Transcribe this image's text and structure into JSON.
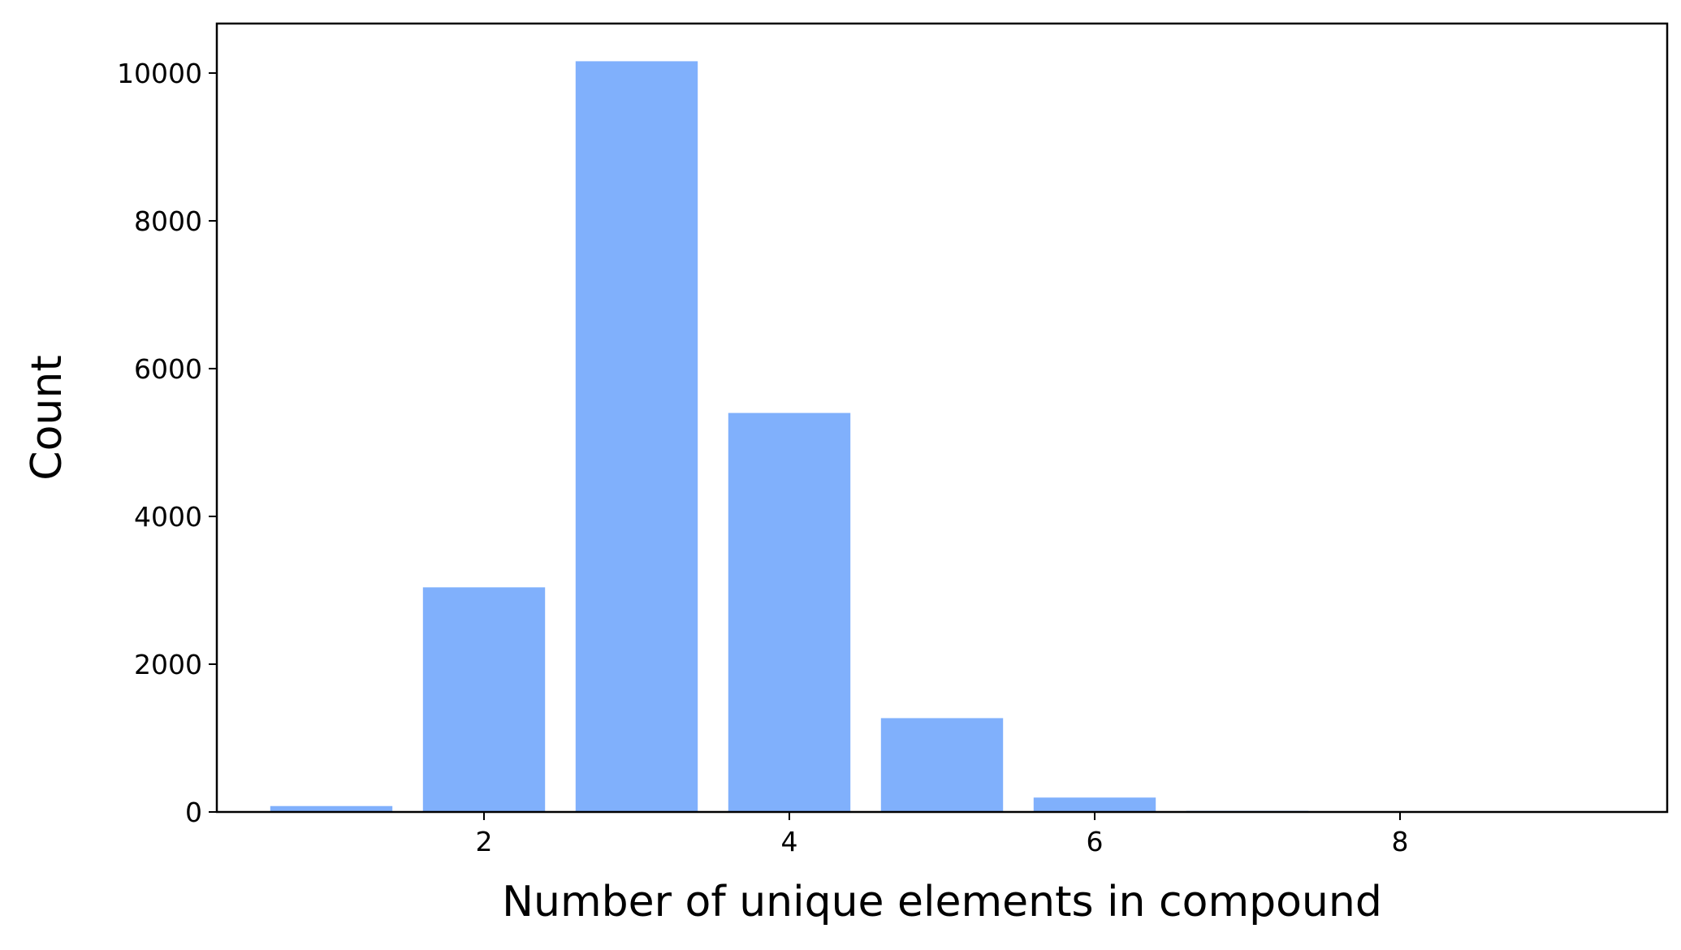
{
  "chart_data": {
    "type": "bar",
    "title": "",
    "xlabel": "Number of unique elements in compound",
    "ylabel": "Count",
    "x": [
      1,
      2,
      3,
      4,
      5,
      6,
      7,
      8,
      9
    ],
    "values": [
      80,
      3040,
      10160,
      5400,
      1270,
      195,
      15,
      2,
      0
    ],
    "bar_width": 0.8,
    "xlim": [
      0.25,
      9.75
    ],
    "ylim": [
      0,
      10670
    ],
    "xticks": [
      2,
      4,
      6,
      8
    ],
    "yticks": [
      0,
      2000,
      4000,
      6000,
      8000,
      10000
    ],
    "bar_color": "#80b0fc",
    "grid": false,
    "legend": "none"
  }
}
